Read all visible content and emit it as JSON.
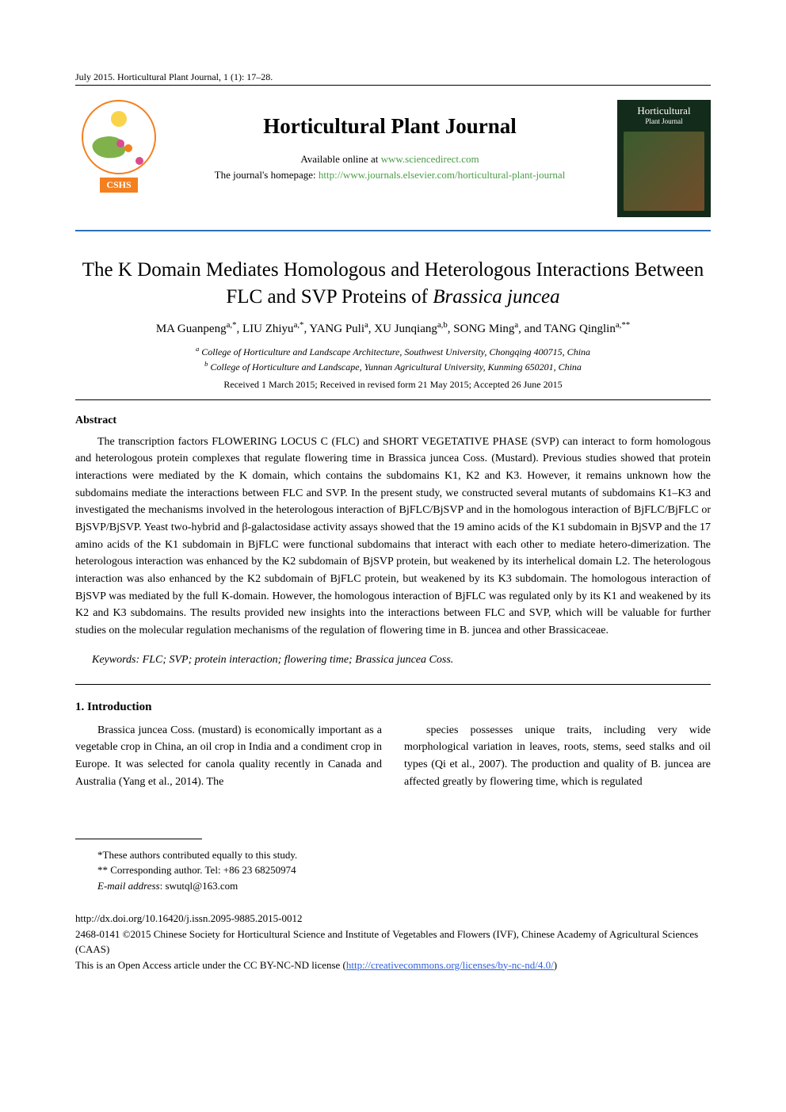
{
  "running_head": "July 2015. Horticultural Plant Journal, 1 (1): 17–28.",
  "hero": {
    "logo_label": "CSHS",
    "journal_title": "Horticultural Plant Journal",
    "available_prefix": "Available online at ",
    "available_url": "www.sciencedirect.com",
    "homepage_prefix": "The journal's homepage: ",
    "homepage_url": "http://www.journals.elsevier.com/horticultural-plant-journal",
    "cover_line1": "Horticultural",
    "cover_line2": "Plant Journal"
  },
  "article": {
    "title_line1": "The K Domain Mediates Homologous and Heterologous Interactions Between",
    "title_line2_plain": "FLC and SVP Proteins of ",
    "title_line2_italic": "Brassica juncea",
    "authors_html": "MA Guanpeng",
    "authors_sup1": "a,*",
    "a2": ", LIU Zhiyu",
    "a2s": "a,*",
    "a3": ", YANG Puli",
    "a3s": "a",
    "a4": ", XU Junqiang",
    "a4s": "a,b",
    "a5": ", SONG Ming",
    "a5s": "a",
    "a6": ", and TANG Qinglin",
    "a6s": "a,**",
    "affil_a_sup": "a",
    "affil_a": " College of Horticulture and Landscape Architecture, Southwest University, Chongqing 400715, China",
    "affil_b_sup": "b",
    "affil_b": " College of Horticulture and Landscape, Yunnan Agricultural University, Kunming 650201, China",
    "dates": "Received 1 March 2015; Received in revised form 21 May 2015; Accepted 26 June 2015"
  },
  "abstract": {
    "heading": "Abstract",
    "body": "The transcription factors FLOWERING LOCUS C (FLC) and SHORT VEGETATIVE PHASE (SVP) can interact to form homologous and heterologous protein complexes that regulate flowering time in Brassica juncea Coss. (Mustard). Previous studies showed that protein interactions were mediated by the K domain, which contains the subdomains K1, K2 and K3. However, it remains unknown how the subdomains mediate the interactions between FLC and SVP. In the present study, we constructed several mutants of subdomains K1–K3 and investigated the mechanisms involved in the heterologous interaction of BjFLC/BjSVP and in the homologous interaction of BjFLC/BjFLC or BjSVP/BjSVP. Yeast two-hybrid and β-galactosidase activity assays showed that the 19 amino acids of the K1 subdomain in BjSVP and the 17 amino acids of the K1 subdomain in BjFLC were functional subdomains that interact with each other to mediate hetero-dimerization. The heterologous interaction was enhanced by the K2 subdomain of BjSVP protein, but weakened by its interhelical domain L2. The heterologous interaction was also enhanced by the K2 subdomain of BjFLC protein, but weakened by its K3 subdomain. The homologous interaction of BjSVP was mediated by the full K-domain. However, the homologous interaction of BjFLC was regulated only by its K1 and weakened by its K2 and K3 subdomains. The results provided new insights into the interactions between FLC and SVP, which will be valuable for further studies on the molecular regulation mechanisms of the regulation of flowering time in B. juncea and other Brassicaceae.",
    "keywords_label": "Keywords",
    "keywords_rest": ": FLC; SVP; protein interaction; flowering time; ",
    "keywords_italic": "Brassica juncea",
    "keywords_tail": " Coss."
  },
  "intro": {
    "heading": "1. Introduction",
    "col1": "Brassica juncea Coss. (mustard) is economically important as a vegetable crop in China, an oil crop in India and a condiment crop in Europe. It was selected for canola quality recently in Canada and Australia (Yang et al., 2014). The",
    "col2": "species possesses unique traits, including very wide morphological variation in leaves, roots, stems, seed stalks and oil types (Qi et al., 2007). The production and quality of B. juncea are affected greatly by flowering time, which is regulated"
  },
  "footnotes": {
    "f1": "*These authors contributed equally to this study.",
    "f2": "** Corresponding author. Tel: +86 23 68250974",
    "f3_label": "E-mail address",
    "f3_rest": ": swutql@163.com"
  },
  "bottom": {
    "doi": "http://dx.doi.org/10.16420/j.issn.2095-9885.2015-0012",
    "copyright": "2468-0141 ©2015 Chinese Society for Horticultural Science and Institute of Vegetables and Flowers (IVF), Chinese Academy of Agricultural Sciences (CAAS)",
    "oa_prefix": "This is an Open Access article under the CC BY-NC-ND license (",
    "oa_url": "http://creativecommons.org/licenses/by-nc-nd/4.0/",
    "oa_suffix": ")"
  },
  "colors": {
    "accent_blue": "#2f6fba",
    "link_green": "#4a9d46",
    "logo_orange": "#f47f1f",
    "link_blue": "#2b5fe0"
  }
}
